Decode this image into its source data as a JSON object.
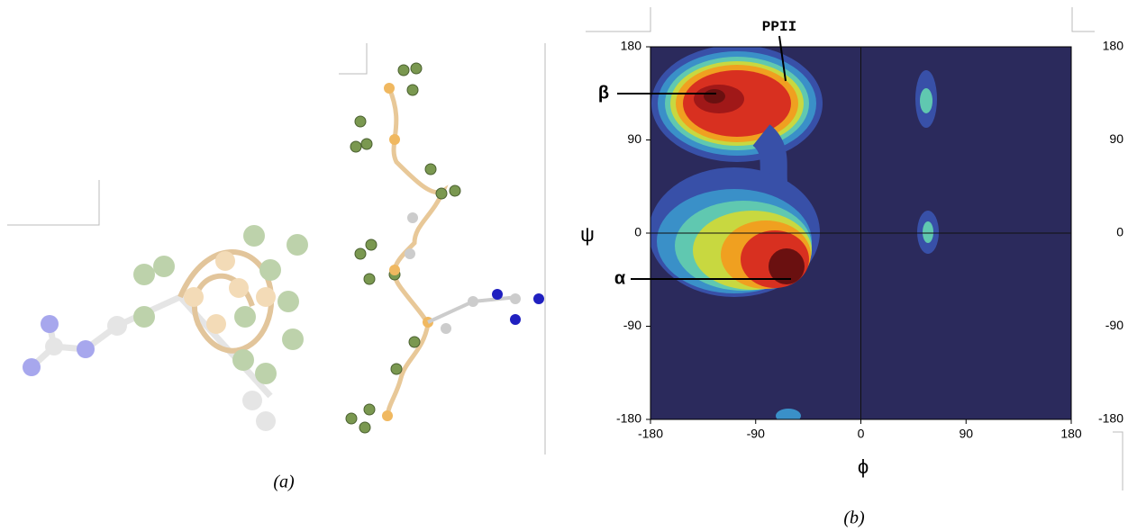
{
  "figure": {
    "panel_a": {
      "caption": "(a)"
    },
    "panel_b": {
      "caption": "(b)",
      "x_label": "ϕ",
      "y_label": "ψ",
      "xticks": [
        -180,
        -90,
        0,
        90,
        180
      ],
      "yticks": [
        -180,
        -90,
        0,
        90,
        180
      ],
      "annotations": [
        "PPII",
        "β",
        "α"
      ]
    }
  }
}
